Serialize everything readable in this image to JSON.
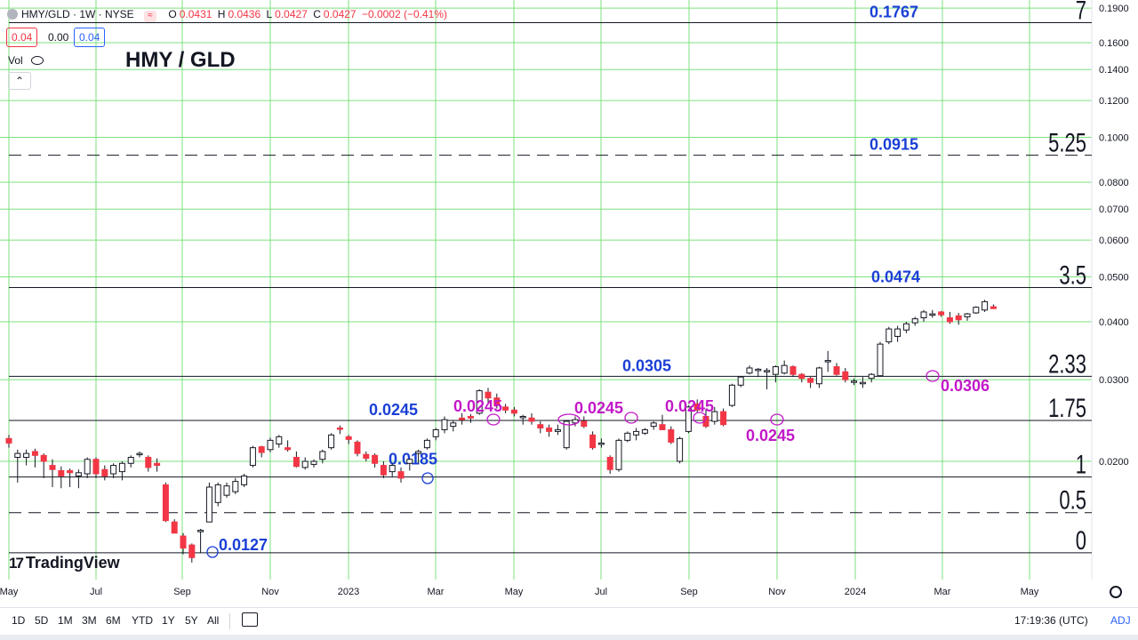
{
  "header": {
    "symbol": "HMY/GLD · 1W · NYSE",
    "o_label": "O",
    "o_value": "0.0431",
    "h_label": "H",
    "h_value": "0.0436",
    "l_label": "L",
    "l_value": "0.0427",
    "c_label": "C",
    "c_value": "0.0427",
    "change": "−0.0002 (−0.41%)",
    "sell_price": "0.04",
    "spread": "0.00",
    "buy_price": "0.04",
    "vol_label": "Vol",
    "collapse_glyph": "⌃"
  },
  "colors": {
    "up": "#ffffff",
    "down": "#f23645",
    "grid": "#7ee07e",
    "blue": "#1a3fd6",
    "magenta": "#c218c8"
  },
  "chart_data": {
    "type": "candlestick",
    "title": "HMY / GLD",
    "scale": "log",
    "ylim": [
      0.0109,
      0.195
    ],
    "y_ticks": [
      "0.1900",
      "0.1600",
      "0.1400",
      "0.1200",
      "0.1000",
      "0.0800",
      "0.0700",
      "0.0600",
      "0.0500",
      "0.0400",
      "0.0300",
      "0.0200"
    ],
    "y_tick_values": [
      0.19,
      0.16,
      0.14,
      0.12,
      0.1,
      0.08,
      0.07,
      0.06,
      0.05,
      0.04,
      0.03,
      0.02
    ],
    "x_ticks": [
      "May",
      "Jul",
      "Sep",
      "Nov",
      "2023",
      "Mar",
      "May",
      "Jul",
      "Sep",
      "Nov",
      "2024",
      "Mar",
      "May"
    ],
    "candles": [
      [
        0.0224,
        0.0228,
        0.0214,
        0.0219
      ],
      [
        0.0204,
        0.0212,
        0.018,
        0.0208
      ],
      [
        0.0204,
        0.0212,
        0.0196,
        0.0208
      ],
      [
        0.021,
        0.0213,
        0.0194,
        0.0206
      ],
      [
        0.0206,
        0.0208,
        0.0184,
        0.02
      ],
      [
        0.0196,
        0.0202,
        0.0176,
        0.0192
      ],
      [
        0.0191,
        0.0195,
        0.0175,
        0.0186
      ],
      [
        0.0191,
        0.0193,
        0.0176,
        0.0189
      ],
      [
        0.0186,
        0.0192,
        0.0175,
        0.0189
      ],
      [
        0.0188,
        0.0204,
        0.0184,
        0.0202
      ],
      [
        0.0202,
        0.0204,
        0.0184,
        0.0188
      ],
      [
        0.0192,
        0.0196,
        0.0182,
        0.0186
      ],
      [
        0.0188,
        0.0198,
        0.0184,
        0.0196
      ],
      [
        0.019,
        0.02,
        0.0182,
        0.0198
      ],
      [
        0.0198,
        0.0206,
        0.0194,
        0.0204
      ],
      [
        0.0208,
        0.021,
        0.0204,
        0.0208
      ],
      [
        0.0204,
        0.0206,
        0.019,
        0.0194
      ],
      [
        0.0198,
        0.0203,
        0.019,
        0.0196
      ],
      [
        0.0178,
        0.018,
        0.0148,
        0.0149
      ],
      [
        0.0148,
        0.015,
        0.014,
        0.014
      ],
      [
        0.0138,
        0.014,
        0.0126,
        0.013
      ],
      [
        0.0132,
        0.0133,
        0.0121,
        0.0124
      ],
      [
        0.0141,
        0.0143,
        0.0127,
        0.0142
      ],
      [
        0.0148,
        0.018,
        0.0148,
        0.0176
      ],
      [
        0.0163,
        0.018,
        0.016,
        0.0178
      ],
      [
        0.0169,
        0.018,
        0.0167,
        0.0177
      ],
      [
        0.0172,
        0.0184,
        0.017,
        0.0181
      ],
      [
        0.0178,
        0.0188,
        0.0176,
        0.0186
      ],
      [
        0.0196,
        0.0216,
        0.0194,
        0.0214
      ],
      [
        0.0215,
        0.0216,
        0.0204,
        0.0209
      ],
      [
        0.0212,
        0.0225,
        0.0209,
        0.0222
      ],
      [
        0.0218,
        0.0228,
        0.0214,
        0.0226
      ],
      [
        0.0214,
        0.0222,
        0.021,
        0.0212
      ],
      [
        0.0204,
        0.021,
        0.0194,
        0.0195
      ],
      [
        0.0194,
        0.0204,
        0.0192,
        0.02
      ],
      [
        0.0197,
        0.0202,
        0.0194,
        0.02
      ],
      [
        0.0202,
        0.0212,
        0.0198,
        0.021
      ],
      [
        0.0214,
        0.023,
        0.0212,
        0.0228
      ],
      [
        0.0236,
        0.0239,
        0.0229,
        0.0235
      ],
      [
        0.0226,
        0.0228,
        0.0218,
        0.0223
      ],
      [
        0.022,
        0.0222,
        0.0205,
        0.0208
      ],
      [
        0.0207,
        0.021,
        0.02,
        0.0203
      ],
      [
        0.0206,
        0.0208,
        0.0194,
        0.0198
      ],
      [
        0.0196,
        0.02,
        0.0184,
        0.0187
      ],
      [
        0.019,
        0.0198,
        0.0185,
        0.0196
      ],
      [
        0.019,
        0.0194,
        0.018,
        0.0184
      ],
      [
        0.0198,
        0.0202,
        0.0191,
        0.0202
      ],
      [
        0.0208,
        0.0212,
        0.0198,
        0.021
      ],
      [
        0.0214,
        0.0224,
        0.0212,
        0.0222
      ],
      [
        0.0226,
        0.0236,
        0.0222,
        0.0234
      ],
      [
        0.0234,
        0.025,
        0.023,
        0.0246
      ],
      [
        0.0238,
        0.0245,
        0.0232,
        0.0242
      ],
      [
        0.0248,
        0.0254,
        0.024,
        0.0246
      ],
      [
        0.025,
        0.0253,
        0.0242,
        0.0248
      ],
      [
        0.0254,
        0.0286,
        0.0252,
        0.0284
      ],
      [
        0.0282,
        0.0288,
        0.0268,
        0.0274
      ],
      [
        0.0274,
        0.028,
        0.026,
        0.0264
      ],
      [
        0.0262,
        0.0266,
        0.0254,
        0.0258
      ],
      [
        0.0258,
        0.0262,
        0.025,
        0.0254
      ],
      [
        0.025,
        0.0252,
        0.024,
        0.025
      ],
      [
        0.0248,
        0.0254,
        0.024,
        0.0244
      ],
      [
        0.024,
        0.0244,
        0.023,
        0.0236
      ],
      [
        0.0236,
        0.024,
        0.0226,
        0.0232
      ],
      [
        0.0232,
        0.024,
        0.0228,
        0.0234
      ],
      [
        0.0214,
        0.0244,
        0.0212,
        0.0244
      ],
      [
        0.0242,
        0.025,
        0.0238,
        0.0246
      ],
      [
        0.0244,
        0.025,
        0.0236,
        0.0238
      ],
      [
        0.0228,
        0.0232,
        0.0212,
        0.0214
      ],
      [
        0.0218,
        0.0224,
        0.0214,
        0.0219
      ],
      [
        0.0204,
        0.0206,
        0.0188,
        0.0192
      ],
      [
        0.0192,
        0.0224,
        0.019,
        0.0222
      ],
      [
        0.0222,
        0.0232,
        0.022,
        0.023
      ],
      [
        0.0228,
        0.0236,
        0.0222,
        0.0232
      ],
      [
        0.023,
        0.0236,
        0.0228,
        0.0234
      ],
      [
        0.0238,
        0.0244,
        0.0234,
        0.0242
      ],
      [
        0.024,
        0.0252,
        0.0234,
        0.0234
      ],
      [
        0.0234,
        0.0238,
        0.0218,
        0.022
      ],
      [
        0.02,
        0.0226,
        0.0198,
        0.0224
      ],
      [
        0.0232,
        0.0264,
        0.023,
        0.0262
      ],
      [
        0.0266,
        0.0272,
        0.0254,
        0.0258
      ],
      [
        0.025,
        0.026,
        0.0236,
        0.0238
      ],
      [
        0.0244,
        0.0262,
        0.024,
        0.0256
      ],
      [
        0.0256,
        0.026,
        0.0238,
        0.024
      ],
      [
        0.0264,
        0.0294,
        0.0262,
        0.0292
      ],
      [
        0.0292,
        0.0305,
        0.0289,
        0.0304
      ],
      [
        0.031,
        0.0322,
        0.0308,
        0.0318
      ],
      [
        0.0314,
        0.0318,
        0.0304,
        0.0316
      ],
      [
        0.0312,
        0.0318,
        0.0286,
        0.0314
      ],
      [
        0.0308,
        0.0322,
        0.0296,
        0.032
      ],
      [
        0.031,
        0.033,
        0.0308,
        0.0322
      ],
      [
        0.032,
        0.0322,
        0.0304,
        0.0308
      ],
      [
        0.0308,
        0.031,
        0.0296,
        0.0302
      ],
      [
        0.0302,
        0.0304,
        0.0288,
        0.0296
      ],
      [
        0.0294,
        0.032,
        0.0288,
        0.0318
      ],
      [
        0.033,
        0.0346,
        0.0312,
        0.033
      ],
      [
        0.032,
        0.0326,
        0.0306,
        0.0308
      ],
      [
        0.0312,
        0.0318,
        0.0296,
        0.03
      ],
      [
        0.0298,
        0.0302,
        0.0292,
        0.0298
      ],
      [
        0.0294,
        0.0304,
        0.0288,
        0.0296
      ],
      [
        0.0302,
        0.031,
        0.0296,
        0.0308
      ],
      [
        0.0306,
        0.0362,
        0.0304,
        0.0358
      ],
      [
        0.0362,
        0.039,
        0.0358,
        0.0386
      ],
      [
        0.0372,
        0.0392,
        0.0362,
        0.0386
      ],
      [
        0.0384,
        0.04,
        0.0378,
        0.0396
      ],
      [
        0.0398,
        0.041,
        0.0392,
        0.0406
      ],
      [
        0.0408,
        0.0424,
        0.04,
        0.042
      ],
      [
        0.0416,
        0.0424,
        0.0408,
        0.0416
      ],
      [
        0.042,
        0.0422,
        0.041,
        0.0414
      ],
      [
        0.0408,
        0.042,
        0.0396,
        0.04
      ],
      [
        0.0412,
        0.0418,
        0.0394,
        0.0404
      ],
      [
        0.041,
        0.0418,
        0.0402,
        0.0416
      ],
      [
        0.0418,
        0.0432,
        0.0416,
        0.043
      ],
      [
        0.0424,
        0.0446,
        0.042,
        0.0442
      ],
      [
        0.0431,
        0.0436,
        0.0427,
        0.0427
      ]
    ],
    "levels": [
      {
        "value": 0.1767,
        "label": "0.1767",
        "ratio": "7",
        "style": "solid"
      },
      {
        "value": 0.0915,
        "label": "0.0915",
        "ratio": "5.25",
        "style": "dashed"
      },
      {
        "value": 0.0474,
        "label": "0.0474",
        "ratio": "3.5",
        "style": "solid"
      },
      {
        "value": 0.0305,
        "label": "0.0305",
        "ratio": "2.33",
        "style": "solid"
      },
      {
        "value": 0.0245,
        "label": "0.0245",
        "ratio": "1.75",
        "style": "solid"
      },
      {
        "value": 0.0185,
        "label": "0.0185",
        "ratio": "1",
        "style": "solid"
      },
      {
        "value": 0.0155,
        "label": "",
        "ratio": "0.5",
        "style": "dashed"
      },
      {
        "value": 0.0127,
        "label": "0.0127",
        "ratio": "0",
        "style": "solid"
      }
    ],
    "annotations_magenta": [
      "0.0245",
      "0.0245",
      "0.0245",
      "0.0245",
      "0.0306"
    ]
  },
  "toolbar": {
    "ranges": [
      "1D",
      "5D",
      "1M",
      "3M",
      "6M",
      "YTD",
      "1Y",
      "5Y",
      "All"
    ],
    "time": "17:19:36 (UTC)",
    "adj": "ADJ"
  },
  "brand": "TradingView"
}
